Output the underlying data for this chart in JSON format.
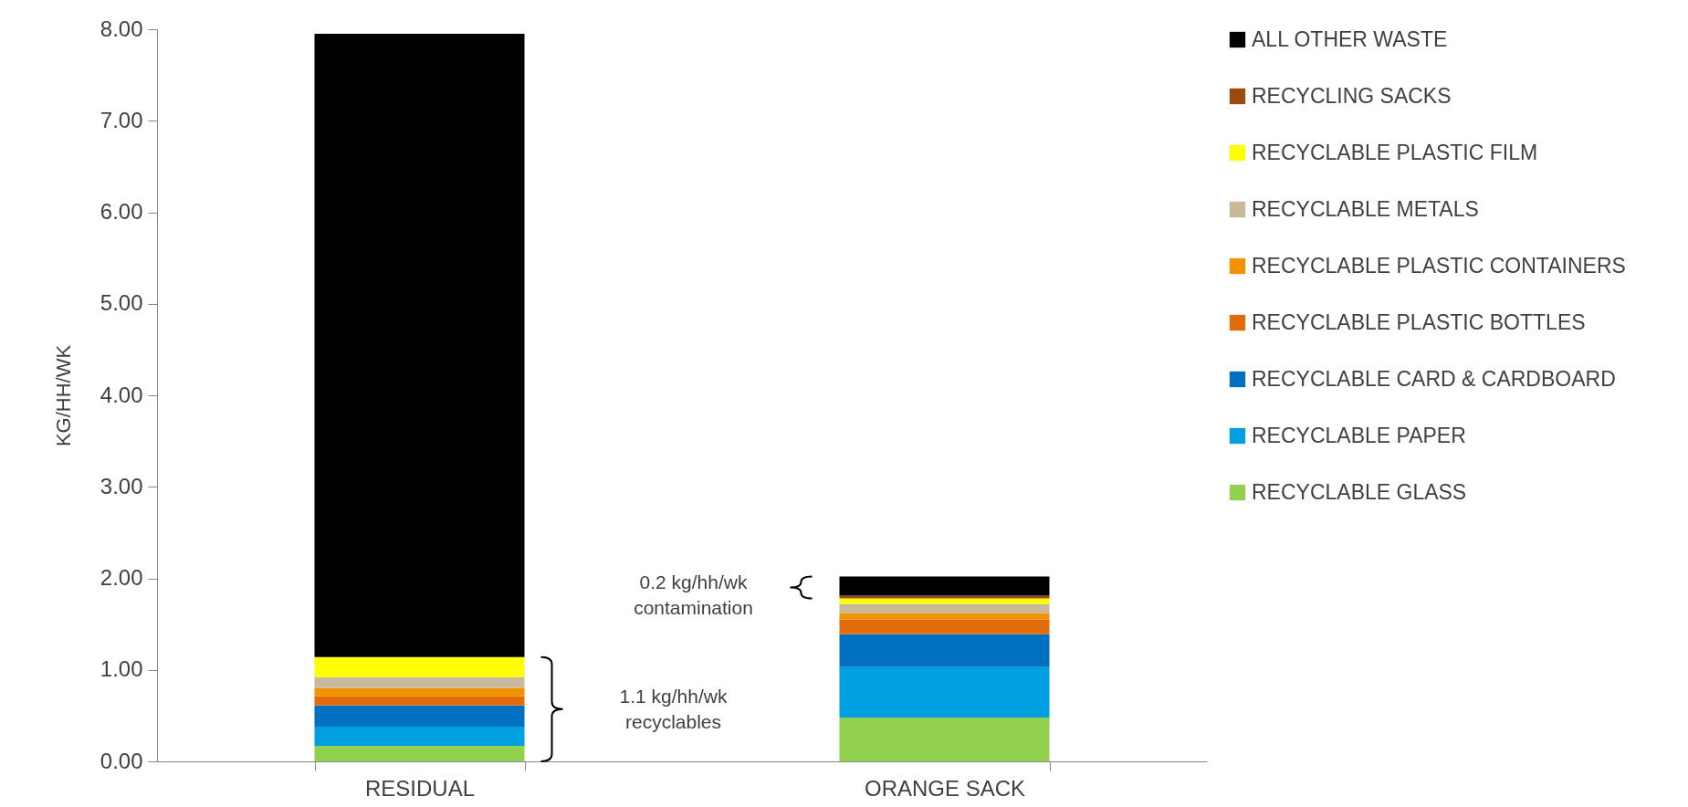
{
  "chart_data": {
    "type": "bar",
    "stacked": true,
    "ylabel": "KG/HH/WK",
    "categories": [
      "RESIDUAL",
      "ORANGE SACK"
    ],
    "series": [
      {
        "name": "RECYCLABLE GLASS",
        "color": "#92d050",
        "values": [
          0.17,
          0.48
        ]
      },
      {
        "name": "RECYCLABLE PAPER",
        "color": "#009fe0",
        "values": [
          0.21,
          0.55
        ]
      },
      {
        "name": "RECYCLABLE CARD & CARDBOARD",
        "color": "#0070c0",
        "values": [
          0.23,
          0.36
        ]
      },
      {
        "name": "RECYCLABLE PLASTIC BOTTLES",
        "color": "#e36c0a",
        "values": [
          0.1,
          0.16
        ]
      },
      {
        "name": "RECYCLABLE PLASTIC CONTAINERS",
        "color": "#f39200",
        "values": [
          0.09,
          0.07
        ]
      },
      {
        "name": "RECYCLABLE METALS",
        "color": "#c9b99b",
        "values": [
          0.12,
          0.1
        ]
      },
      {
        "name": "RECYCLABLE PLASTIC FILM",
        "color": "#ffff00",
        "values": [
          0.22,
          0.06
        ]
      },
      {
        "name": "RECYCLING SACKS",
        "color": "#9c4a0e",
        "values": [
          0,
          0.03
        ]
      },
      {
        "name": "ALL OTHER WASTE",
        "color": "#000000",
        "values": [
          6.81,
          0.21
        ]
      }
    ],
    "ylim": [
      0,
      8
    ],
    "yticks": [
      {
        "value": 0,
        "label": "0.00"
      },
      {
        "value": 1,
        "label": "1.00"
      },
      {
        "value": 2,
        "label": "2.00"
      },
      {
        "value": 3,
        "label": "3.00"
      },
      {
        "value": 4,
        "label": "4.00"
      },
      {
        "value": 5,
        "label": "5.00"
      },
      {
        "value": 6,
        "label": "6.00"
      },
      {
        "value": 7,
        "label": "7.00"
      },
      {
        "value": 8,
        "label": "8.00"
      }
    ],
    "annotations": [
      "1.1 kg/hh/wk\nrecyclables",
      "0.2 kg/hh/wk\ncontamination"
    ],
    "grid": false,
    "legend": "right"
  }
}
